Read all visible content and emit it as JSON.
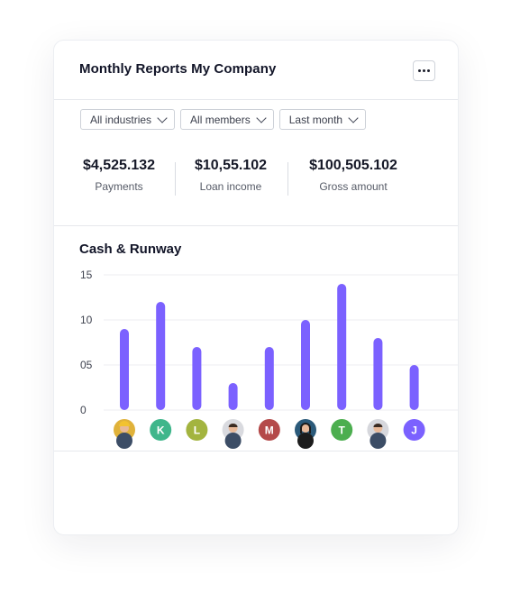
{
  "card": {
    "title": "Monthly Reports My Company",
    "more_label": "More options"
  },
  "filters": [
    {
      "label": "All industries"
    },
    {
      "label": "All members"
    },
    {
      "label": "Last month"
    }
  ],
  "stats": [
    {
      "value": "$4,525.132",
      "label": "Payments"
    },
    {
      "value": "$10,55.102",
      "label": "Loan income"
    },
    {
      "value": "$100,505.102",
      "label": "Gross amount"
    }
  ],
  "chart_title": "Cash & Runway",
  "chart_data": {
    "type": "bar",
    "title": "Cash & Runway",
    "xlabel": "",
    "ylabel": "",
    "ylim": [
      0,
      15
    ],
    "y_ticks": [
      "0",
      "05",
      "10",
      "15"
    ],
    "y_tick_values": [
      0,
      5,
      10,
      15
    ],
    "grid": true,
    "bar_color": "#7b61ff",
    "categories": [
      "avatar-1",
      "K",
      "L",
      "avatar-4",
      "M",
      "avatar-6",
      "T",
      "avatar-8",
      "J"
    ],
    "values": [
      9,
      12,
      7,
      3,
      7,
      10,
      14,
      8,
      5
    ]
  },
  "avatars": [
    {
      "type": "photo",
      "icon": "worker-avatar-icon",
      "bg": "#e0b23a"
    },
    {
      "type": "letter",
      "letter": "K",
      "bg": "#3fb68b"
    },
    {
      "type": "letter",
      "letter": "L",
      "bg": "#a3b43f"
    },
    {
      "type": "photo",
      "icon": "man-avatar-icon",
      "bg": "#d9dadf"
    },
    {
      "type": "letter",
      "letter": "M",
      "bg": "#b44a4a"
    },
    {
      "type": "photo",
      "icon": "woman-avatar-icon",
      "bg": "#2b5a7a"
    },
    {
      "type": "letter",
      "letter": "T",
      "bg": "#4cae4f"
    },
    {
      "type": "photo",
      "icon": "man-beard-avatar-icon",
      "bg": "#d6d7dc"
    },
    {
      "type": "letter",
      "letter": "J",
      "bg": "#7b61ff"
    }
  ]
}
